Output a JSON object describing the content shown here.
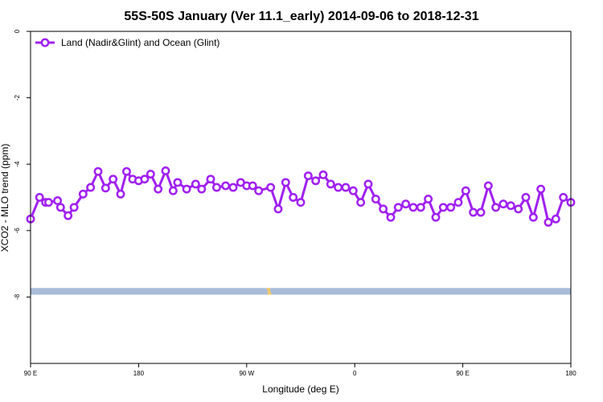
{
  "chart_data": {
    "type": "line",
    "title": "55S-50S January (Ver 11.1_early)   2014-09-06 to 2018-12-31",
    "xlabel": "Longitude (deg E)",
    "ylabel": "XCO2 - MLO trend (ppm)",
    "xlim": [
      90,
      450
    ],
    "ylim": [
      -10,
      0
    ],
    "x_ticks": [
      {
        "value": 90,
        "label": "90 E"
      },
      {
        "value": 162,
        "label": "180"
      },
      {
        "value": 234,
        "label": "90 W"
      },
      {
        "value": 306,
        "label": "0"
      },
      {
        "value": 378,
        "label": "90 E"
      },
      {
        "value": 450,
        "label": "180"
      }
    ],
    "y_ticks": [
      {
        "value": 0,
        "label": "0"
      },
      {
        "value": -2,
        "label": "-2"
      },
      {
        "value": -4,
        "label": "-4"
      },
      {
        "value": -6,
        "label": "-6"
      },
      {
        "value": -8,
        "label": "-8"
      }
    ],
    "grid": false,
    "legend_position": "top-left",
    "colors": {
      "series": "#a020f0",
      "land_band": "#a9bcd8",
      "land_mark": "#f2c866"
    },
    "series": [
      {
        "name": "Land (Nadir&Glint) and Ocean (Glint)",
        "x": [
          90,
          96,
          100,
          102,
          108,
          110,
          115,
          119,
          125,
          130,
          135,
          140,
          145,
          150,
          154,
          158,
          162,
          166,
          170,
          175,
          180,
          185,
          188,
          194,
          200,
          204,
          210,
          214,
          220,
          225,
          230,
          234,
          238,
          242,
          250,
          255,
          260,
          265,
          270,
          275,
          280,
          285,
          290,
          295,
          300,
          305,
          310,
          315,
          320,
          325,
          330,
          335,
          340,
          345,
          350,
          355,
          360,
          365,
          370,
          375,
          380,
          385,
          390,
          395,
          400,
          405,
          410,
          415,
          420,
          425,
          430,
          435,
          440,
          445,
          450
        ],
        "y": [
          -5.65,
          -5.0,
          -5.15,
          -5.15,
          -5.1,
          -5.3,
          -5.55,
          -5.3,
          -4.9,
          -4.7,
          -4.22,
          -4.72,
          -4.45,
          -4.9,
          -4.22,
          -4.45,
          -4.5,
          -4.45,
          -4.3,
          -4.75,
          -4.2,
          -4.8,
          -4.55,
          -4.75,
          -4.6,
          -4.75,
          -4.45,
          -4.7,
          -4.65,
          -4.7,
          -4.55,
          -4.65,
          -4.65,
          -4.8,
          -4.7,
          -5.35,
          -4.55,
          -5.0,
          -5.15,
          -4.35,
          -4.5,
          -4.32,
          -4.6,
          -4.7,
          -4.7,
          -4.8,
          -5.15,
          -4.6,
          -5.05,
          -5.35,
          -5.6,
          -5.3,
          -5.2,
          -5.3,
          -5.3,
          -5.05,
          -5.6,
          -5.3,
          -5.3,
          -5.15,
          -4.8,
          -5.45,
          -5.45,
          -4.65,
          -5.3,
          -5.2,
          -5.25,
          -5.35,
          -5.0,
          -5.6,
          -4.75,
          -5.75,
          -5.65,
          -5.0,
          -5.15
        ]
      }
    ]
  }
}
